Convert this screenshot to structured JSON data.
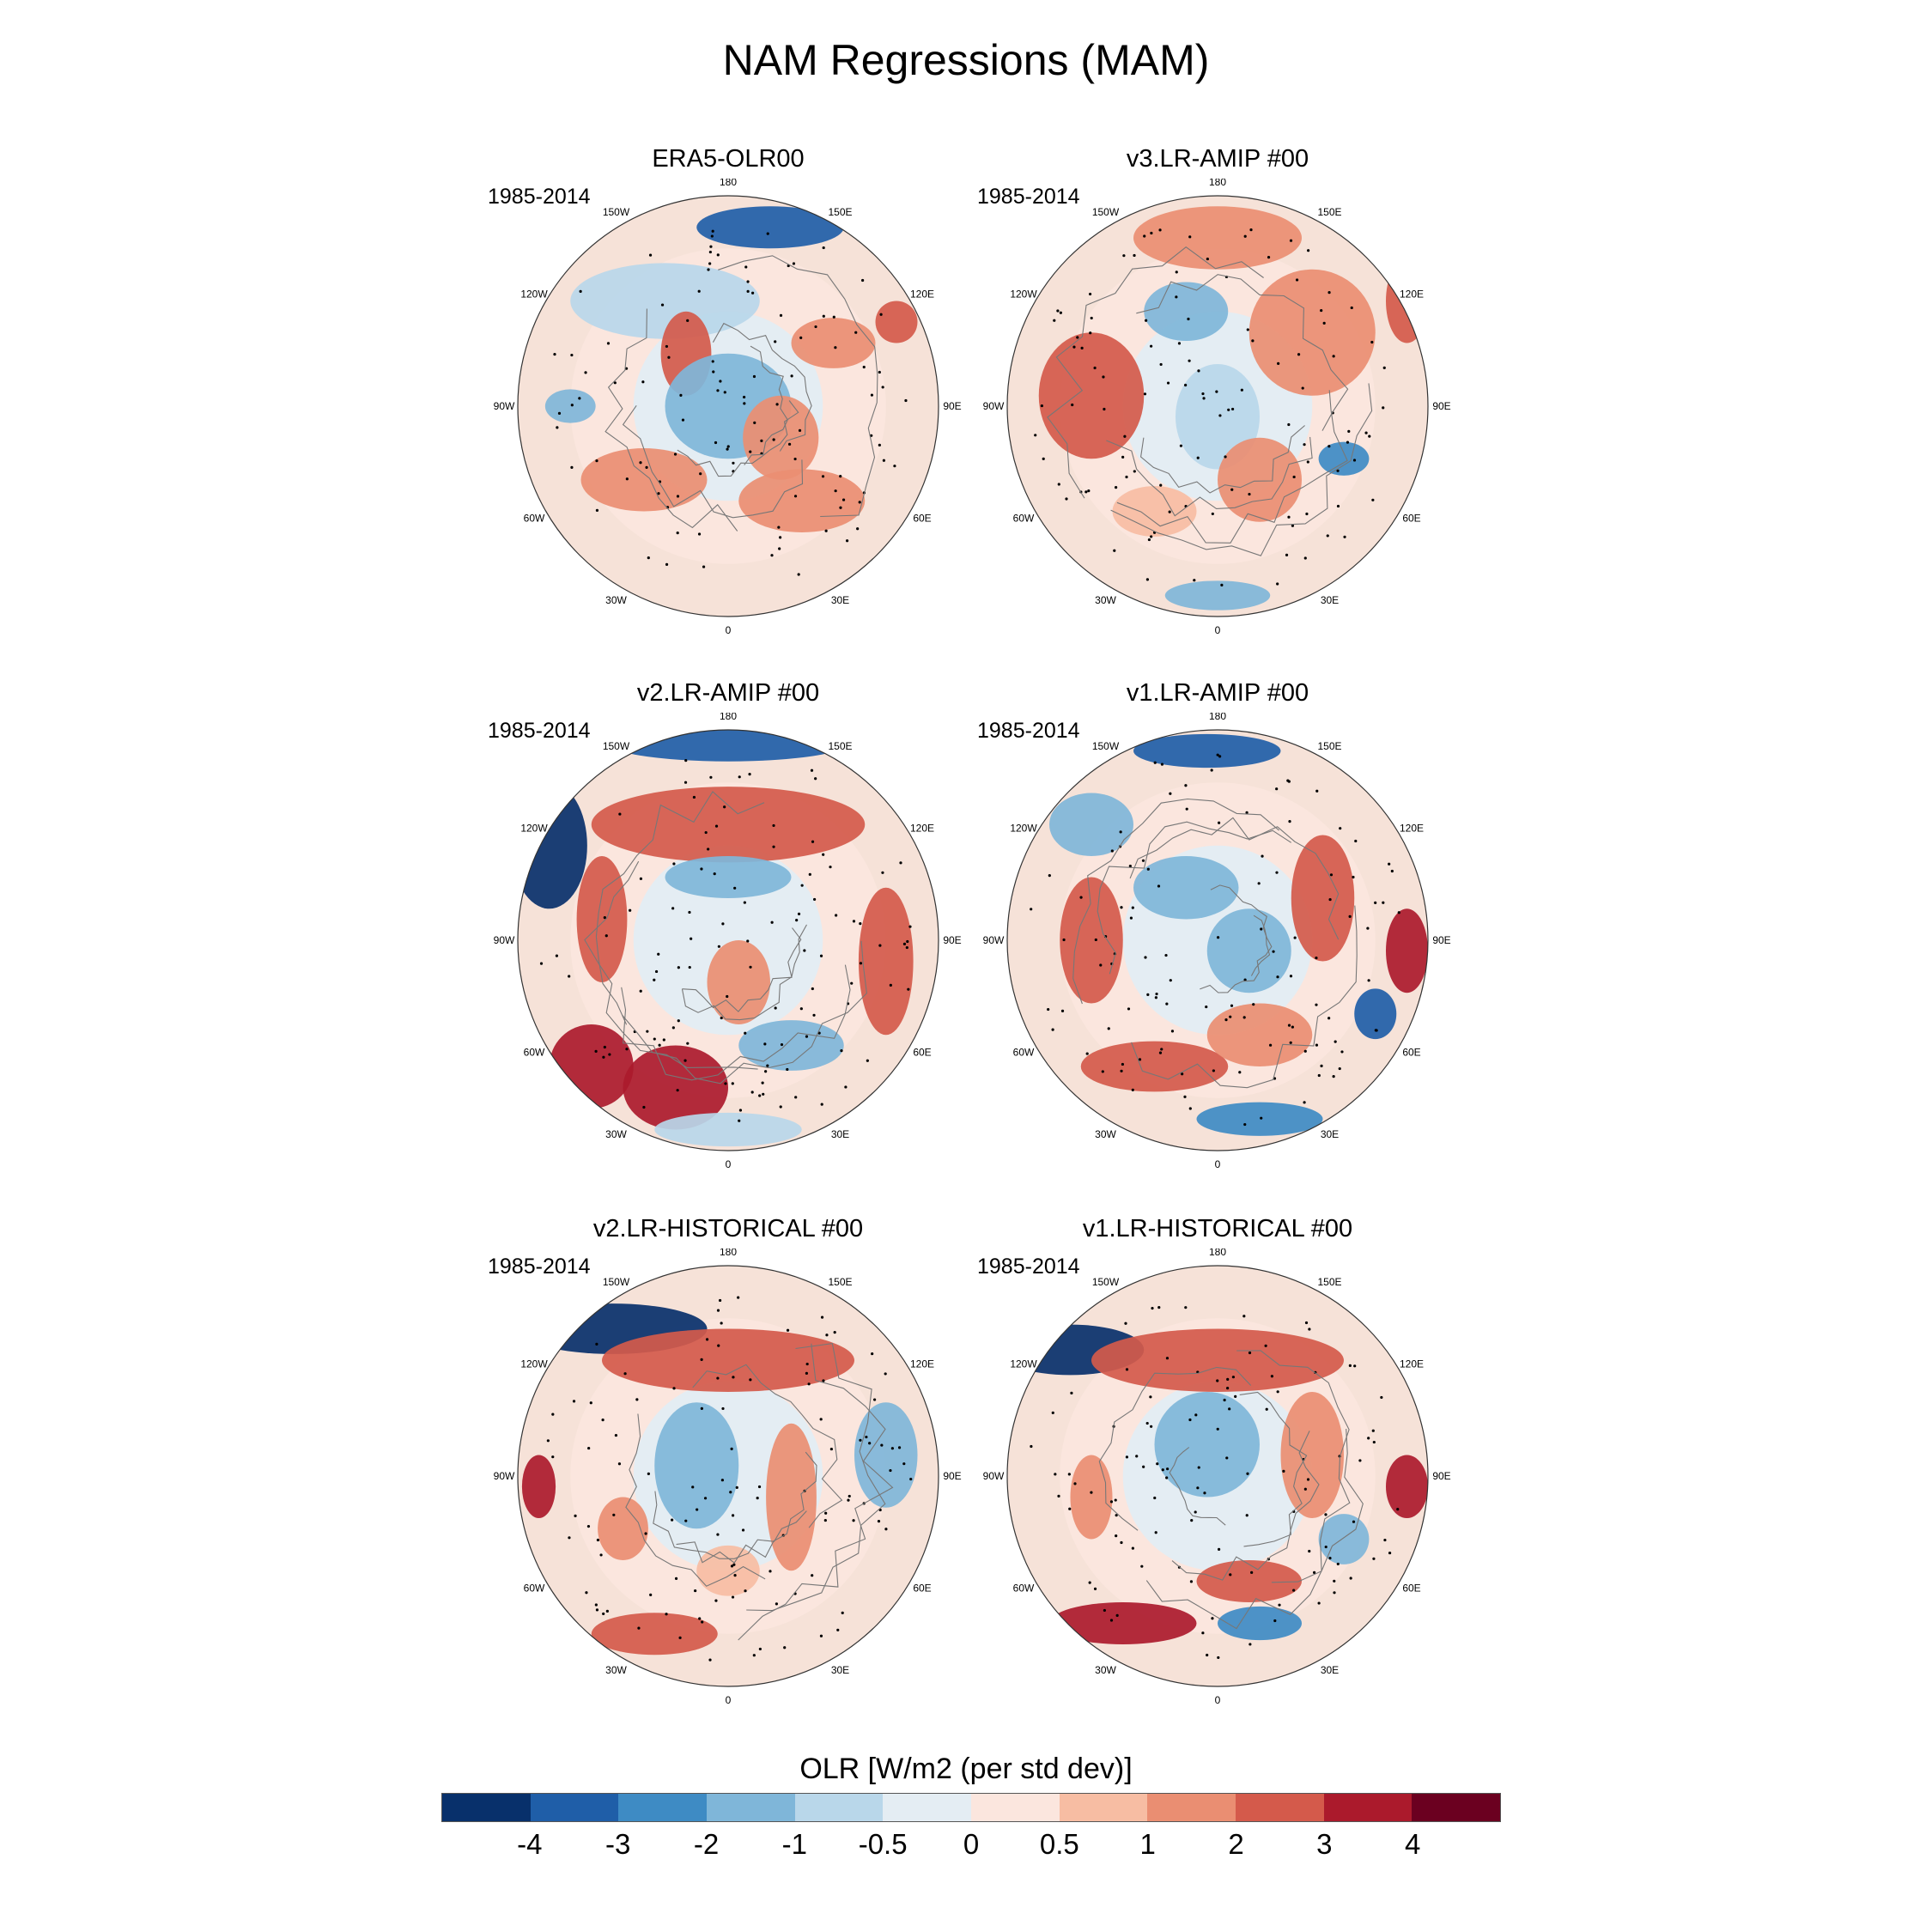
{
  "figure": {
    "title": "NAM Regressions (MAM)"
  },
  "panels": [
    {
      "title": "ERA5-OLR00",
      "years": "1985-2014",
      "lon_labels": {
        "n180": "180",
        "w150": "150W",
        "e150": "150E",
        "w120": "120W",
        "e120": "120E",
        "w90": "90W",
        "e90": "90E",
        "w60": "60W",
        "e60": "60E",
        "w30": "30W",
        "e30": "30E",
        "s0": "0"
      }
    },
    {
      "title": "v3.LR-AMIP  #00",
      "years": "1985-2014",
      "lon_labels": {
        "n180": "180",
        "w150": "150W",
        "e150": "150E",
        "w120": "120W",
        "e120": "120E",
        "w90": "90W",
        "e90": "90E",
        "w60": "60W",
        "e60": "60E",
        "w30": "30W",
        "e30": "30E",
        "s0": "0"
      }
    },
    {
      "title": "v2.LR-AMIP  #00",
      "years": "1985-2014",
      "lon_labels": {
        "n180": "180",
        "w150": "150W",
        "e150": "150E",
        "w120": "120W",
        "e120": "120E",
        "w90": "90W",
        "e90": "90E",
        "w60": "60W",
        "e60": "60E",
        "w30": "30W",
        "e30": "30E",
        "s0": "0"
      }
    },
    {
      "title": "v1.LR-AMIP  #00",
      "years": "1985-2014",
      "lon_labels": {
        "n180": "180",
        "w150": "150W",
        "e150": "150E",
        "w120": "120W",
        "e120": "120E",
        "w90": "90W",
        "e90": "90E",
        "w60": "60W",
        "e60": "60E",
        "w30": "30W",
        "e30": "30E",
        "s0": "0"
      }
    },
    {
      "title": "v2.LR-HISTORICAL  #00",
      "years": "1985-2014",
      "lon_labels": {
        "n180": "180",
        "w150": "150W",
        "e150": "150E",
        "w120": "120W",
        "e120": "120E",
        "w90": "90W",
        "e90": "90E",
        "w60": "60W",
        "e60": "60E",
        "w30": "30W",
        "e30": "30E",
        "s0": "0"
      }
    },
    {
      "title": "v1.LR-HISTORICAL  #00",
      "years": "1985-2014",
      "lon_labels": {
        "n180": "180",
        "w150": "150W",
        "e150": "150E",
        "w120": "120W",
        "e120": "120E",
        "w90": "90W",
        "e90": "90E",
        "w60": "60W",
        "e60": "60E",
        "w30": "30W",
        "e30": "30E",
        "s0": "0"
      }
    }
  ],
  "colorbar": {
    "label": "OLR [W/m2 (per std dev)]",
    "ticks": [
      "-4",
      "-3",
      "-2",
      "-1",
      "-0.5",
      "0",
      "0.5",
      "1",
      "2",
      "3",
      "4"
    ],
    "colors": [
      "#08306b",
      "#1f5ea8",
      "#3e8bc4",
      "#7fb6d9",
      "#b9d7ea",
      "#e4edf3",
      "#fbe6de",
      "#f7bda3",
      "#ea8e72",
      "#d45a4b",
      "#ab1a2c",
      "#6b0020"
    ]
  }
}
